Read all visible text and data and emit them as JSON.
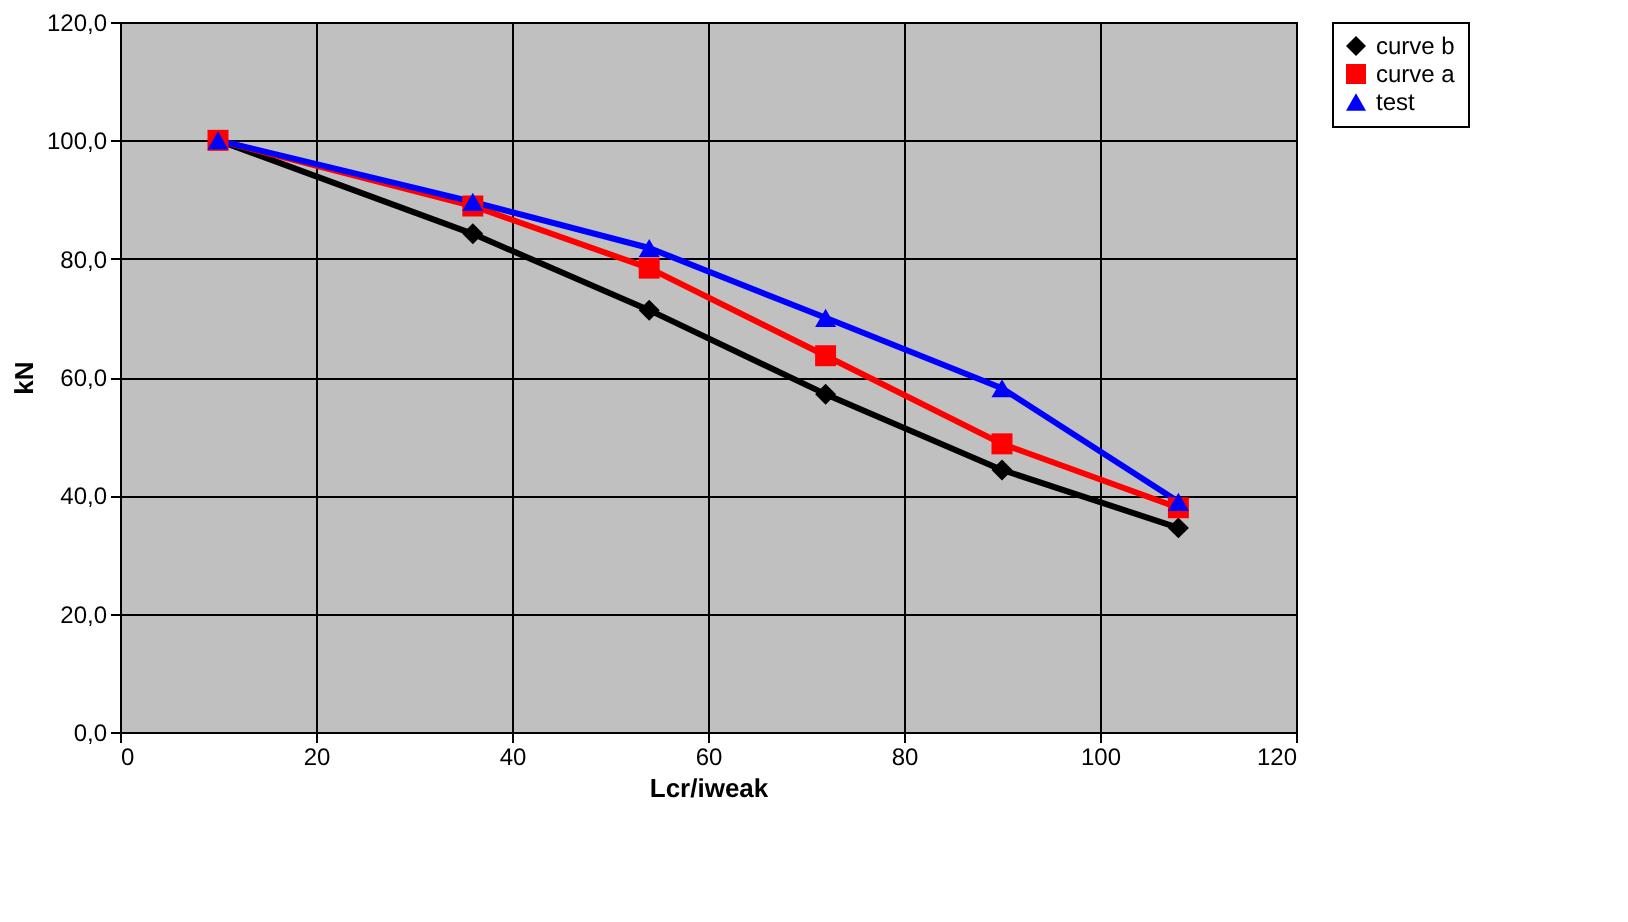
{
  "chart_data": {
    "type": "line",
    "xlabel": "Lcr/iweak",
    "ylabel": "kN",
    "x": [
      10,
      36,
      54,
      72,
      90,
      108
    ],
    "series": [
      {
        "name": "curve b",
        "color": "#000000",
        "marker": "diamond",
        "values": [
          100,
          84.2,
          71.3,
          57.1,
          44.3,
          34.5
        ]
      },
      {
        "name": "curve a",
        "color": "#ff0000",
        "marker": "square",
        "values": [
          100,
          88.9,
          78.4,
          63.6,
          48.7,
          37.9
        ]
      },
      {
        "name": "test",
        "color": "#0000ff",
        "marker": "triangle",
        "values": [
          100,
          89.6,
          81.8,
          70.0,
          58.1,
          38.9
        ]
      }
    ],
    "xlim": [
      0,
      120
    ],
    "xticks": [
      0,
      20,
      40,
      60,
      80,
      100,
      120
    ],
    "ylim": [
      0,
      120
    ],
    "yticks": [
      {
        "value": 0,
        "label": "0,0"
      },
      {
        "value": 20,
        "label": "20,0"
      },
      {
        "value": 40,
        "label": "40,0"
      },
      {
        "value": 60,
        "label": "60,0"
      },
      {
        "value": 80,
        "label": "80,0"
      },
      {
        "value": 100,
        "label": "100,0"
      },
      {
        "value": 120,
        "label": "120,0"
      }
    ],
    "grid": true,
    "legend": "right",
    "line_style": "solid"
  }
}
